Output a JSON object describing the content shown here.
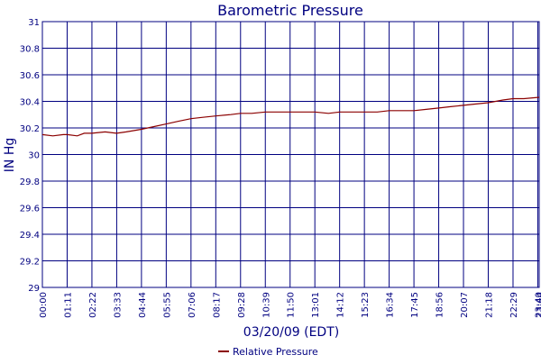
{
  "colors": {
    "axis_text": "#000080",
    "grid": "#000080",
    "series": "#8b0000",
    "background": "#ffffff"
  },
  "chart_data": {
    "type": "line",
    "title": "Barometric Pressure",
    "xlabel": "03/20/09 (EDT)",
    "ylabel": "IN Hg",
    "ylim": [
      29,
      31
    ],
    "y_ticks": [
      29,
      29.2,
      29.4,
      29.6,
      29.8,
      30,
      30.2,
      30.4,
      30.6,
      30.8,
      31
    ],
    "y_tick_labels": [
      "29",
      "29.2",
      "29.4",
      "29.6",
      "29.8",
      "30",
      "30.2",
      "30.4",
      "30.6",
      "30.8",
      "31"
    ],
    "x_ticks": [
      "00:00",
      "01:11",
      "02:22",
      "03:33",
      "04:44",
      "05:55",
      "07:06",
      "08:17",
      "09:28",
      "10:39",
      "11:50",
      "13:01",
      "14:12",
      "15:23",
      "16:34",
      "17:45",
      "18:56",
      "20:07",
      "21:18",
      "22:29",
      "23:40",
      "23:44"
    ],
    "xlim": [
      "00:00",
      "23:44"
    ],
    "grid": true,
    "legend_position": "bottom-center",
    "series": [
      {
        "name": "Relative Pressure",
        "x": [
          "00:00",
          "00:30",
          "01:00",
          "01:11",
          "01:40",
          "02:00",
          "02:22",
          "03:00",
          "03:33",
          "04:00",
          "04:44",
          "05:20",
          "05:55",
          "06:30",
          "07:06",
          "07:40",
          "08:17",
          "09:00",
          "09:28",
          "10:00",
          "10:39",
          "11:00",
          "11:50",
          "12:30",
          "13:01",
          "13:40",
          "14:12",
          "15:00",
          "15:23",
          "16:00",
          "16:34",
          "17:10",
          "17:45",
          "18:20",
          "18:56",
          "19:30",
          "20:07",
          "20:40",
          "21:18",
          "22:00",
          "22:29",
          "23:00",
          "23:40",
          "23:44"
        ],
        "y": [
          30.15,
          30.14,
          30.15,
          30.15,
          30.14,
          30.16,
          30.16,
          30.17,
          30.16,
          30.17,
          30.19,
          30.21,
          30.23,
          30.25,
          30.27,
          30.28,
          30.29,
          30.3,
          30.31,
          30.31,
          30.32,
          30.32,
          30.32,
          30.32,
          30.32,
          30.31,
          30.32,
          30.32,
          30.32,
          30.32,
          30.33,
          30.33,
          30.33,
          30.34,
          30.35,
          30.36,
          30.37,
          30.38,
          30.39,
          30.41,
          30.42,
          30.42,
          30.43,
          30.43
        ]
      }
    ]
  }
}
